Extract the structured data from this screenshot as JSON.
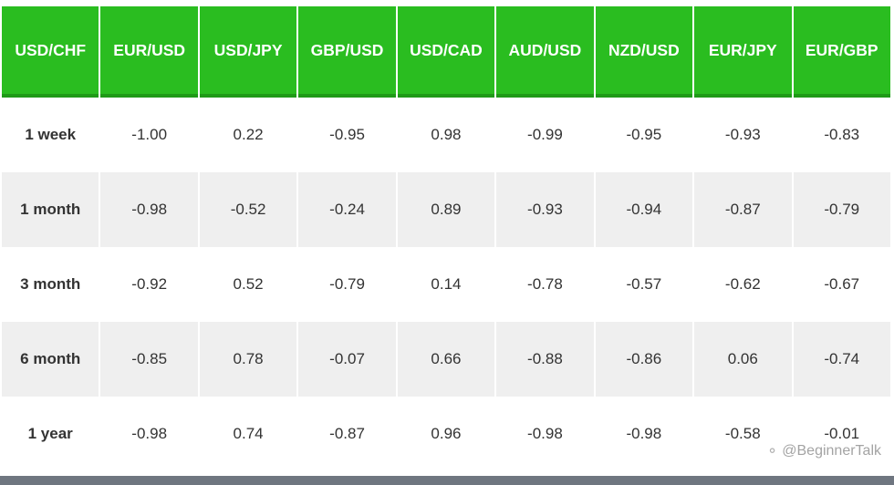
{
  "table": {
    "headers": [
      "USD/CHF",
      "EUR/USD",
      "USD/JPY",
      "GBP/USD",
      "USD/CAD",
      "AUD/USD",
      "NZD/USD",
      "EUR/JPY",
      "EUR/GBP"
    ],
    "rows": [
      {
        "label": "1 week",
        "values": [
          "-1.00",
          "0.22",
          "-0.95",
          "0.98",
          "-0.99",
          "-0.95",
          "-0.93",
          "-0.83"
        ]
      },
      {
        "label": "1 month",
        "values": [
          "-0.98",
          "-0.52",
          "-0.24",
          "0.89",
          "-0.93",
          "-0.94",
          "-0.87",
          "-0.79"
        ]
      },
      {
        "label": "3 month",
        "values": [
          "-0.92",
          "0.52",
          "-0.79",
          "0.14",
          "-0.78",
          "-0.57",
          "-0.62",
          "-0.67"
        ]
      },
      {
        "label": "6 month",
        "values": [
          "-0.85",
          "0.78",
          "-0.07",
          "0.66",
          "-0.88",
          "-0.86",
          "0.06",
          "-0.74"
        ]
      },
      {
        "label": "1 year",
        "values": [
          "-0.98",
          "0.74",
          "-0.87",
          "0.96",
          "-0.98",
          "-0.98",
          "-0.58",
          "-0.01"
        ]
      }
    ]
  },
  "watermark": {
    "icon": "weibo-icon",
    "text": "@BeginnerTalk"
  },
  "colors": {
    "header_bg": "#2abd20",
    "header_text": "#ffffff",
    "row_alt_bg": "#efefef",
    "bottom_bar": "#6f7680"
  }
}
